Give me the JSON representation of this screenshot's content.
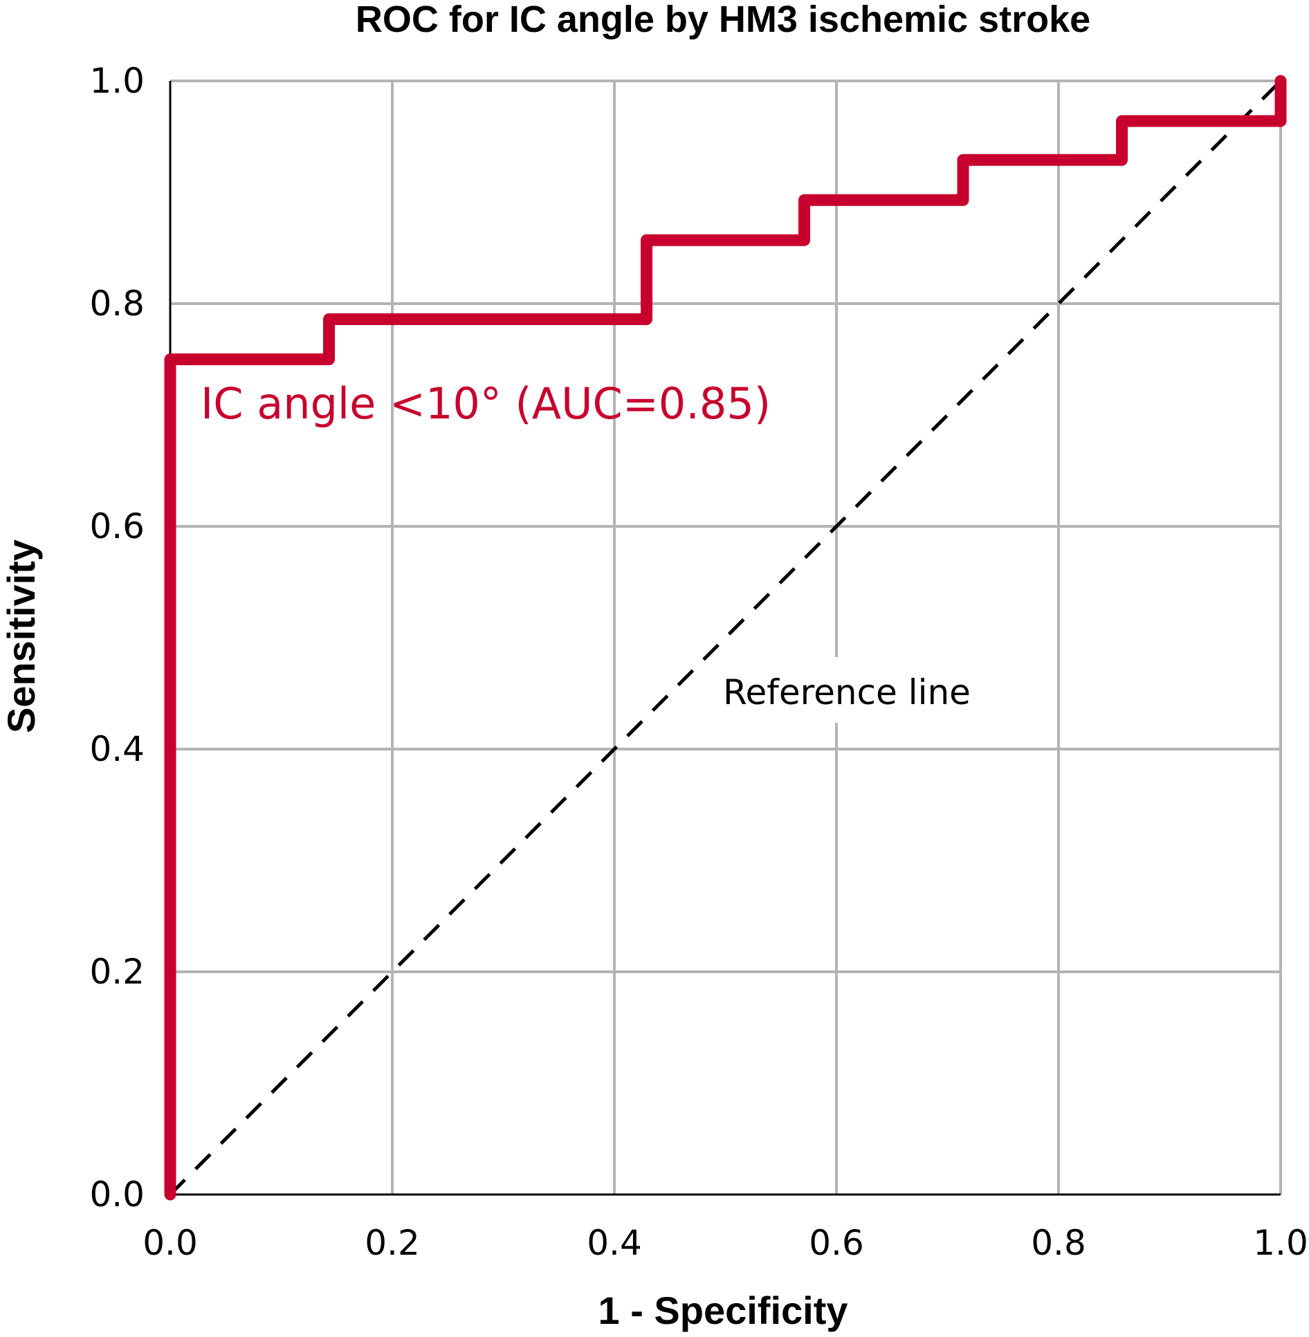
{
  "chart_data": {
    "type": "line",
    "title": "ROC for IC angle by HM3 ischemic stroke",
    "xlabel": "1 - Specificity",
    "ylabel": "Sensitivity",
    "xlim": [
      0,
      1
    ],
    "ylim": [
      0,
      1
    ],
    "x_ticks": [
      "0.0",
      "0.2",
      "0.4",
      "0.6",
      "0.8",
      "1.0"
    ],
    "y_ticks": [
      "0.0",
      "0.2",
      "0.4",
      "0.6",
      "0.8",
      "1.0"
    ],
    "grid": true,
    "series": [
      {
        "name": "IC angle <10° (AUC=0.85)",
        "color": "#c8002d",
        "step": true,
        "x": [
          0.0,
          0.0,
          0.143,
          0.143,
          0.429,
          0.429,
          0.571,
          0.571,
          0.714,
          0.714,
          0.857,
          0.857,
          1.0,
          1.0
        ],
        "y": [
          0.0,
          0.75,
          0.75,
          0.786,
          0.786,
          0.857,
          0.857,
          0.893,
          0.893,
          0.929,
          0.929,
          0.964,
          0.964,
          1.0
        ]
      }
    ],
    "reference_line": {
      "label": "Reference line",
      "x": [
        0,
        1
      ],
      "y": [
        0,
        1
      ],
      "style": "dashed",
      "color": "#000000"
    }
  }
}
